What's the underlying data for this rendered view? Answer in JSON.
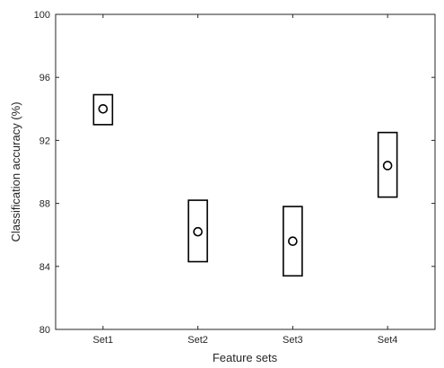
{
  "chart_data": {
    "type": "box",
    "title": "",
    "xlabel": "Feature sets",
    "ylabel": "Classification accuracy (%)",
    "categories": [
      "Set1",
      "Set2",
      "Set3",
      "Set4"
    ],
    "ylim": [
      80,
      100
    ],
    "yticks": [
      80,
      84,
      88,
      92,
      96,
      100
    ],
    "series": [
      {
        "median": [
          94.0,
          86.2,
          85.6,
          90.4
        ],
        "box_low": [
          93.0,
          84.3,
          83.4,
          88.4
        ],
        "box_high": [
          94.9,
          88.2,
          87.8,
          92.5
        ]
      }
    ],
    "grid": false,
    "colors": {
      "line": "#000000",
      "axis": "#262626",
      "background": "#ffffff"
    }
  }
}
